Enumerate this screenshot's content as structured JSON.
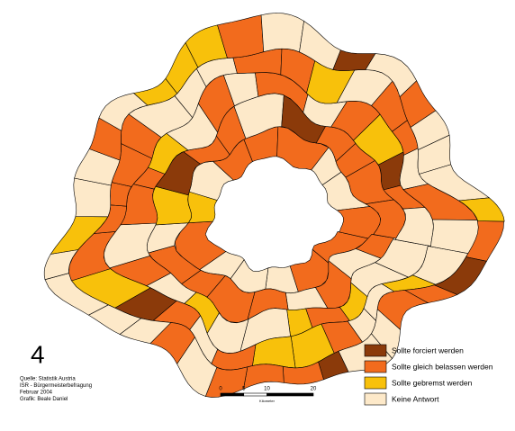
{
  "figure_number": "4",
  "source": [
    "Quelle: Statistik Austria",
    "ISR - Bürgermeisterbefragung",
    "Februar 2004",
    "Grafik: Beale Daniel"
  ],
  "legend": {
    "items": [
      {
        "label": "Sollte forciert werden",
        "color": "#8b3a0a"
      },
      {
        "label": "Sollte gleich belassen werden",
        "color": "#f26b1d"
      },
      {
        "label": "Sollte gebremst werden",
        "color": "#f8c10b"
      },
      {
        "label": "Keine Antwort",
        "color": "#fde9c9"
      }
    ]
  },
  "scale": {
    "ticks": [
      0,
      5,
      10,
      20
    ],
    "unit": "Kilometer"
  }
}
